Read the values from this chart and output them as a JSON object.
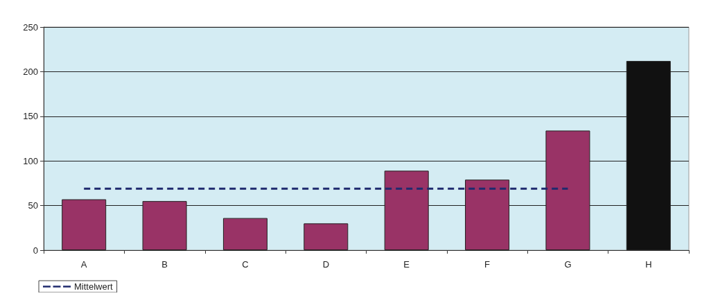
{
  "chart_data": {
    "type": "bar",
    "categories": [
      "A",
      "B",
      "C",
      "D",
      "E",
      "F",
      "G",
      "H"
    ],
    "ylim": [
      0,
      250
    ],
    "yticks": [
      0,
      50,
      100,
      150,
      200,
      250
    ],
    "grid": "y",
    "legend": "bottom left",
    "series": [
      {
        "colors": [
          "#993366",
          "#993366",
          "#993366",
          "#993366",
          "#993366",
          "#993366",
          "#993366",
          "#111111"
        ],
        "values": [
          57,
          55,
          36,
          30,
          89,
          79,
          134,
          212
        ]
      },
      {
        "type": "line",
        "name": "Mittelwert",
        "color": "#1f2a6e",
        "line_style": "dashed",
        "marker": "none",
        "values": [
          69,
          69,
          69,
          69,
          69,
          69,
          69,
          null
        ]
      }
    ]
  }
}
